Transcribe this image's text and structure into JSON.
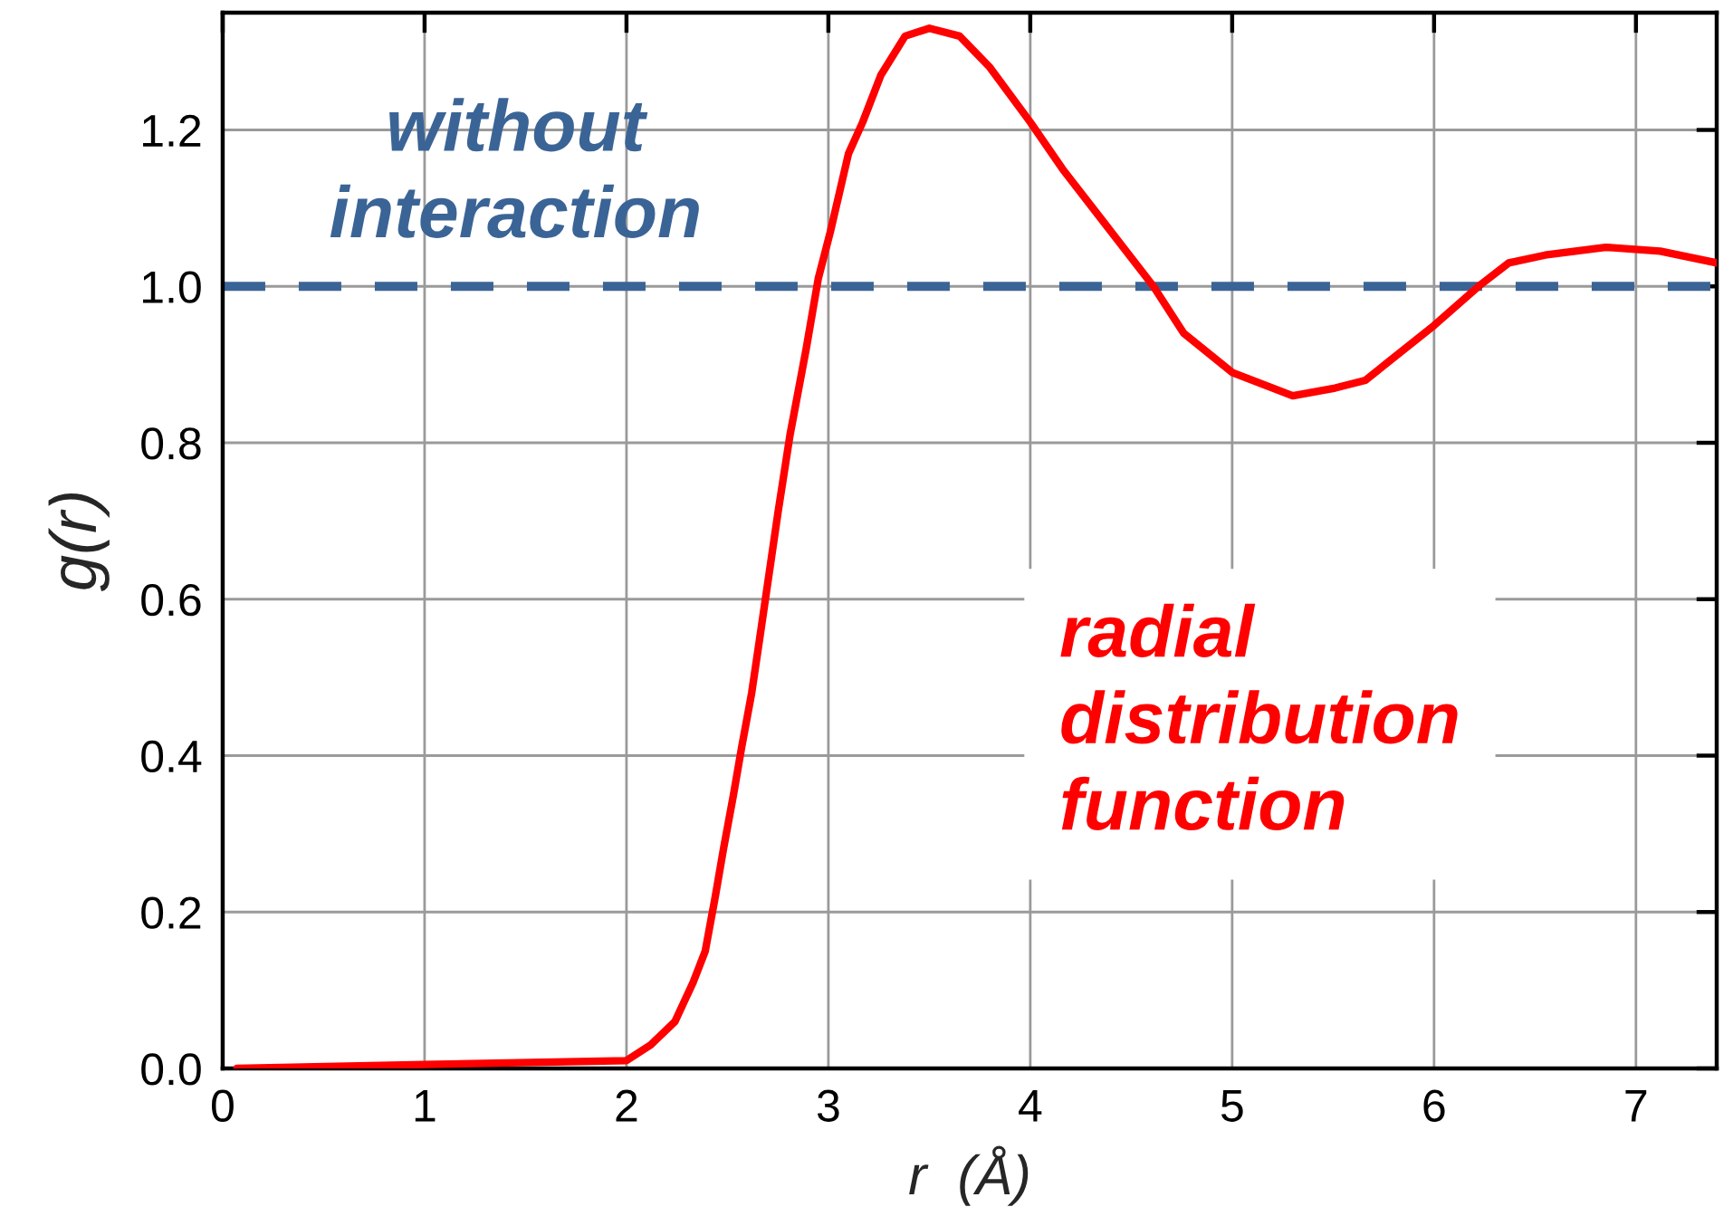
{
  "chart_data": {
    "type": "line",
    "xlabel": "r  (Å)",
    "ylabel": "g(r)",
    "xlim": [
      0,
      7.4
    ],
    "ylim": [
      0,
      1.35
    ],
    "xticks": [
      0,
      1,
      2,
      3,
      4,
      5,
      6,
      7
    ],
    "yticks": [
      {
        "value": 0,
        "label": "0.0"
      },
      0.2,
      0.4,
      0.6,
      0.8,
      {
        "value": 1,
        "label": "1.0"
      },
      1.2
    ],
    "grid": true,
    "x": [
      0.07,
      1.0,
      2.0,
      2.12,
      2.24,
      2.33,
      2.39,
      2.44,
      2.48,
      2.53,
      2.57,
      2.62,
      2.66,
      2.75,
      2.81,
      2.89,
      2.95,
      3.01,
      3.1,
      3.17,
      3.26,
      3.38,
      3.5,
      3.65,
      3.8,
      4.0,
      4.16,
      4.37,
      4.61,
      4.76,
      5.0,
      5.3,
      5.51,
      5.66,
      6.0,
      6.22,
      6.37,
      6.55,
      6.85,
      7.12,
      7.4
    ],
    "series": [
      {
        "name": "radial distribution function",
        "color": "#ff0000",
        "values": [
          0,
          0.005,
          0.01,
          0.03,
          0.06,
          0.11,
          0.15,
          0.22,
          0.28,
          0.35,
          0.41,
          0.48,
          0.55,
          0.71,
          0.81,
          0.92,
          1.01,
          1.07,
          1.17,
          1.21,
          1.27,
          1.32,
          1.33,
          1.32,
          1.28,
          1.21,
          1.15,
          1.08,
          1.0,
          0.94,
          0.89,
          0.86,
          0.87,
          0.88,
          0.95,
          1.0,
          1.03,
          1.04,
          1.05,
          1.045,
          1.03
        ]
      }
    ],
    "ref_lines": [
      {
        "axis": "y",
        "value": 1,
        "label": "without interaction",
        "color": "#3b6496",
        "line_style": "dashed"
      }
    ]
  }
}
